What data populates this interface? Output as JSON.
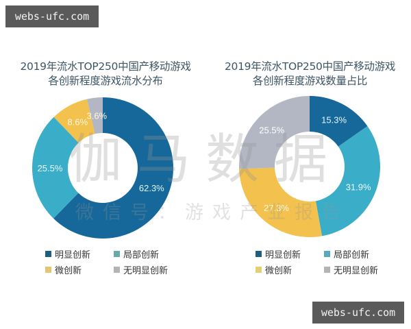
{
  "watermarks": {
    "badge_top": "webs-ufc.com",
    "badge_bottom": "webs-ufc.com",
    "brand_large": "伽马数据",
    "brand_small": "微信号：游戏产业报告"
  },
  "colors": {
    "major": "#17689a",
    "local": "#3aadc8",
    "minor": "#f2c14e",
    "none": "#b3b7c3"
  },
  "chart_data": [
    {
      "type": "pie",
      "variant": "donut",
      "title": "2019年流水TOP250中国产移动游戏各创新程度游戏流水分布",
      "title_line1": "2019年流水TOP250中国产移动游戏",
      "title_line2": "各创新程度游戏流水分布",
      "categories": [
        "明显创新",
        "局部创新",
        "微创新",
        "无明显创新"
      ],
      "values": [
        62.3,
        25.5,
        8.6,
        3.6
      ],
      "labels": [
        "62.3%",
        "25.5%",
        "8.6%",
        "3.6%"
      ],
      "unit": "%",
      "start_angle": "12 o'clock, clockwise",
      "legend": [
        "明显创新",
        "局部创新",
        "微创新",
        "无明显创新"
      ],
      "legend_position": "bottom"
    },
    {
      "type": "pie",
      "variant": "donut",
      "title": "2019年流水TOP250中国产移动游戏各创新程度游戏数量占比",
      "title_line1": "2019年流水TOP250中国产移动游戏",
      "title_line2": "各创新程度游戏数量占比",
      "categories": [
        "明显创新",
        "局部创新",
        "微创新",
        "无明显创新"
      ],
      "values": [
        15.3,
        31.9,
        27.3,
        25.5
      ],
      "labels": [
        "15.3%",
        "31.9%",
        "27.3%",
        "25.5%"
      ],
      "unit": "%",
      "start_angle": "12 o'clock, clockwise",
      "legend": [
        "明显创新",
        "局部创新",
        "微创新",
        "无明显创新"
      ],
      "legend_position": "bottom"
    }
  ]
}
